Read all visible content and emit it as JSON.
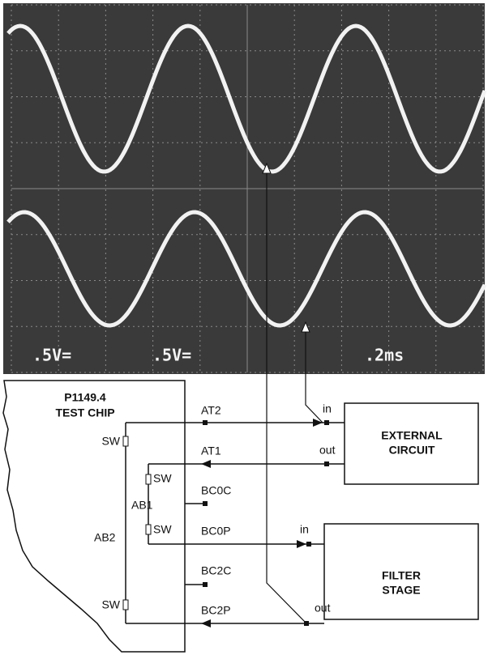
{
  "oscilloscope": {
    "labels": [
      ".5V=",
      ".5V=",
      ".2ms"
    ]
  },
  "chip": {
    "title": [
      "P1149.4",
      "TEST CHIP"
    ],
    "pins": [
      "AT2",
      "AT1",
      "BC0C",
      "BC0P",
      "BC2C",
      "BC2P"
    ],
    "switches": [
      "SW",
      "SW",
      "SW",
      "SW"
    ],
    "buses": [
      "AB1",
      "AB2"
    ]
  },
  "ports": [
    "in",
    "out",
    "in",
    "out"
  ],
  "blocks": [
    {
      "lines": [
        "EXTERNAL",
        "CIRCUIT"
      ]
    },
    {
      "lines": [
        "FILTER",
        "STAGE"
      ]
    }
  ]
}
